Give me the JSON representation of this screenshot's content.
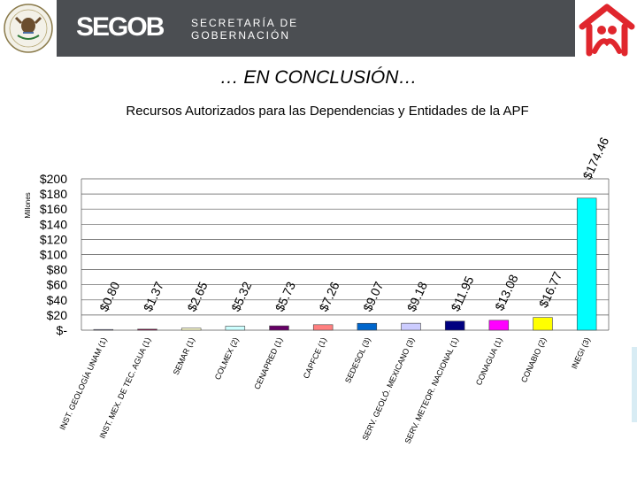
{
  "header": {
    "brand": "SEGOB",
    "department_line1": "SECRETARÍA DE",
    "department_line2": "GOBERNACIÓN",
    "band_color": "#4b4e52",
    "logo_color": "#e0262d"
  },
  "slide_title": "… EN CONCLUSIÓN…",
  "chart_data": {
    "type": "bar",
    "title": "Recursos Autorizados para las Dependencias y Entidades de la APF",
    "ylabel": "Millones",
    "ylim": [
      0,
      200
    ],
    "yticks": [
      "$-",
      "$20",
      "$40",
      "$60",
      "$80",
      "$100",
      "$120",
      "$140",
      "$160",
      "$180",
      "$200"
    ],
    "categories": [
      "INST. GEOLOGÍA UNAM (1)",
      "INST. MEX. DE TEC. AGUA (1)",
      "SEMAR (1)",
      "COLMEX (2)",
      "CENAPRED (1)",
      "CAPFCE (1)",
      "SEDESOL (3)",
      "SERV. GEOLÓ. MEXICANO (3)",
      "SERV. METEOR. NACIONAL (1)",
      "CONAGUA (1)",
      "CONABIO (2)",
      "INEGI (3)"
    ],
    "values": [
      0.8,
      1.37,
      2.65,
      5.32,
      5.73,
      7.26,
      9.07,
      9.18,
      11.95,
      13.08,
      16.77,
      174.46
    ],
    "value_labels": [
      "$0.80",
      "$1.37",
      "$2.65",
      "$5.32",
      "$5.73",
      "$7.26",
      "$9.07",
      "$9.18",
      "$11.95",
      "$13.08",
      "$16.77",
      "$174.46"
    ],
    "colors": [
      "#9a9ad8",
      "#800040",
      "#ffffcc",
      "#ccffff",
      "#660066",
      "#ff8080",
      "#0066cc",
      "#ccccff",
      "#000080",
      "#ff00ff",
      "#ffff00",
      "#00ffff"
    ],
    "grid": true
  }
}
